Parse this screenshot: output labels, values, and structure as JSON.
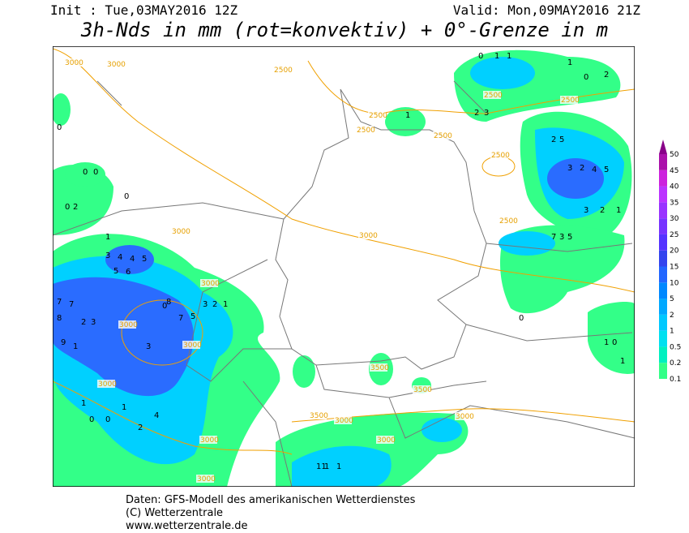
{
  "header": {
    "init": "Init : Tue,03MAY2016 12Z",
    "valid": "Valid: Mon,09MAY2016 21Z",
    "title": "3h-Nds in mm (rot=konvektiv) + 0°-Grenze in m"
  },
  "legend": {
    "levels": [
      0.1,
      0.2,
      0.5,
      1,
      2,
      5,
      10,
      15,
      20,
      25,
      30,
      35,
      40,
      45,
      50
    ],
    "colors": [
      "#33ff88",
      "#00f0c0",
      "#00e0f0",
      "#00c8ff",
      "#00a8ff",
      "#0088ff",
      "#2266ff",
      "#3344ee",
      "#5533ff",
      "#7733ff",
      "#9933ff",
      "#bb33ff",
      "#cc22dd",
      "#aa11aa",
      "#880088"
    ]
  },
  "contour_labels": [
    "3000",
    "3000",
    "2500",
    "2500",
    "2500",
    "2500",
    "2500",
    "2500",
    "2500",
    "2500",
    "3000",
    "3000",
    "3000",
    "3000",
    "3000",
    "3000",
    "3500",
    "3500",
    "3500",
    "3000",
    "3000",
    "3000",
    "3000",
    "3000"
  ],
  "grid_values": [
    "0",
    "0",
    "0",
    "0",
    "2",
    "0",
    "1",
    "3",
    "4",
    "4",
    "5",
    "7",
    "7",
    "8",
    "2",
    "3",
    "5",
    "6",
    "8",
    "7",
    "5",
    "3",
    "2",
    "1",
    "9",
    "1",
    "1",
    "0",
    "0",
    "1",
    "2",
    "4",
    "0",
    "3",
    "11",
    "1",
    "1",
    "1",
    "3",
    "2",
    "2",
    "5",
    "3",
    "2",
    "4",
    "5",
    "5",
    "3",
    "7",
    "3",
    "2",
    "1",
    "0",
    "1",
    "1",
    "1",
    "0",
    "2",
    "1",
    "0",
    "1",
    "0"
  ],
  "footer": [
    "Daten: GFS-Modell des amerikanischen Wetterdienstes",
    "(C) Wetterzentrale",
    "www.wetterzentrale.de"
  ]
}
